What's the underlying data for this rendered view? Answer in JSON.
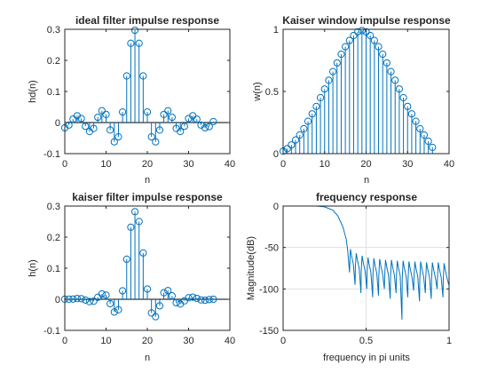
{
  "chart_data": [
    {
      "id": "hd",
      "type": "stem",
      "title": "ideal filter impulse response",
      "xlabel": "n",
      "ylabel": "hd(n)",
      "xlim": [
        0,
        40
      ],
      "ylim": [
        -0.1,
        0.3
      ],
      "xticks": [
        0,
        10,
        20,
        30,
        40
      ],
      "xtick_labels": [
        "0",
        "10",
        "20",
        "30",
        "40"
      ],
      "yticks": [
        -0.1,
        0,
        0.1,
        0.2,
        0.3
      ],
      "ytick_labels": [
        "-0.1",
        "0",
        "0.1",
        "0.2",
        "0.3"
      ],
      "grid": false,
      "color": "#0072bd",
      "x": [
        0,
        1,
        2,
        3,
        4,
        5,
        6,
        7,
        8,
        9,
        10,
        11,
        12,
        13,
        14,
        15,
        16,
        17,
        18,
        19,
        20,
        21,
        22,
        23,
        24,
        25,
        26,
        27,
        28,
        29,
        30,
        31,
        32,
        33,
        34,
        35,
        36
      ],
      "values": [
        -0.017,
        -0.008,
        0.011,
        0.022,
        0.013,
        -0.012,
        -0.029,
        -0.019,
        0.017,
        0.038,
        0.026,
        -0.024,
        -0.062,
        -0.046,
        0.034,
        0.15,
        0.255,
        0.297,
        0.255,
        0.15,
        0.034,
        -0.046,
        -0.062,
        -0.024,
        0.026,
        0.038,
        0.017,
        -0.019,
        -0.029,
        -0.012,
        0.013,
        0.022,
        0.011,
        -0.008,
        -0.017,
        -0.013,
        0.003
      ]
    },
    {
      "id": "w",
      "type": "stem",
      "title": "Kaiser window impulse response",
      "xlabel": "n",
      "ylabel": "w(n)",
      "xlim": [
        0,
        40
      ],
      "ylim": [
        0,
        1
      ],
      "xticks": [
        0,
        10,
        20,
        30,
        40
      ],
      "xtick_labels": [
        "0",
        "10",
        "20",
        "30",
        "40"
      ],
      "yticks": [
        0,
        0.5,
        1
      ],
      "ytick_labels": [
        "0",
        "0.5",
        "1"
      ],
      "grid": false,
      "color": "#0072bd",
      "x": [
        0,
        1,
        2,
        3,
        4,
        5,
        6,
        7,
        8,
        9,
        10,
        11,
        12,
        13,
        14,
        15,
        16,
        17,
        18,
        19,
        20,
        21,
        22,
        23,
        24,
        25,
        26,
        27,
        28,
        29,
        30,
        31,
        32,
        33,
        34,
        35,
        36
      ],
      "values": [
        0.02,
        0.04,
        0.07,
        0.11,
        0.15,
        0.2,
        0.26,
        0.32,
        0.38,
        0.45,
        0.52,
        0.59,
        0.66,
        0.73,
        0.8,
        0.86,
        0.91,
        0.95,
        0.98,
        0.99,
        0.98,
        0.95,
        0.91,
        0.86,
        0.8,
        0.73,
        0.66,
        0.59,
        0.52,
        0.45,
        0.38,
        0.32,
        0.26,
        0.2,
        0.15,
        0.1,
        0.05
      ]
    },
    {
      "id": "h",
      "type": "stem",
      "title": "kaiser filter impulse response",
      "xlabel": "n",
      "ylabel": "h(n)",
      "xlim": [
        0,
        40
      ],
      "ylim": [
        -0.1,
        0.3
      ],
      "xticks": [
        0,
        10,
        20,
        30,
        40
      ],
      "xtick_labels": [
        "0",
        "10",
        "20",
        "30",
        "40"
      ],
      "yticks": [
        -0.1,
        0,
        0.1,
        0.2,
        0.3
      ],
      "ytick_labels": [
        "-0.1",
        "0",
        "0.1",
        "0.2",
        "0.3"
      ],
      "grid": false,
      "color": "#0072bd",
      "x": [
        0,
        1,
        2,
        3,
        4,
        5,
        6,
        7,
        8,
        9,
        10,
        11,
        12,
        13,
        14,
        15,
        16,
        17,
        18,
        19,
        20,
        21,
        22,
        23,
        24,
        25,
        26,
        27,
        28,
        29,
        30,
        31,
        32,
        33,
        34,
        35,
        36
      ],
      "values": [
        0.0003,
        0.0003,
        0.0008,
        0.0024,
        0.002,
        -0.0024,
        -0.0075,
        -0.0061,
        0.0065,
        0.0171,
        0.0135,
        -0.0142,
        -0.0409,
        -0.0336,
        0.0272,
        0.129,
        0.232,
        0.282,
        0.25,
        0.149,
        0.033,
        -0.044,
        -0.056,
        -0.021,
        0.021,
        0.028,
        0.011,
        -0.011,
        -0.015,
        -0.005,
        0.005,
        0.007,
        0.003,
        -0.002,
        -0.003,
        -0.001,
        0.0002
      ]
    },
    {
      "id": "freq",
      "type": "line",
      "title": "frequency response",
      "xlabel": "frequency in pi units",
      "ylabel": "Magnitude(dB)",
      "xlim": [
        0,
        1
      ],
      "ylim": [
        -150,
        0
      ],
      "xticks": [
        0,
        0.5,
        1
      ],
      "xtick_labels": [
        "0",
        "0.5",
        "1"
      ],
      "yticks": [
        -150,
        -100,
        -50,
        0
      ],
      "ytick_labels": [
        "-150",
        "-100",
        "-50",
        "0"
      ],
      "grid": true,
      "color": "#0072bd",
      "passband": {
        "x": [
          0,
          0.2,
          0.25,
          0.3,
          0.33,
          0.36,
          0.38,
          0.39,
          0.4
        ],
        "y": [
          0,
          0,
          -1,
          -5,
          -12,
          -25,
          -40,
          -55,
          -80
        ]
      },
      "lobe_peaks": [
        -60,
        -65,
        -68,
        -70,
        -71,
        -72,
        -73,
        -73,
        -74,
        -74,
        -75,
        -75,
        -75,
        -76,
        -76,
        -76,
        -77
      ],
      "null_depths": [
        -95,
        -105,
        -100,
        -110,
        -108,
        -100,
        -112,
        -105,
        -137,
        -110,
        -102,
        -115,
        -105,
        -112,
        -100,
        -110,
        -95
      ]
    }
  ]
}
